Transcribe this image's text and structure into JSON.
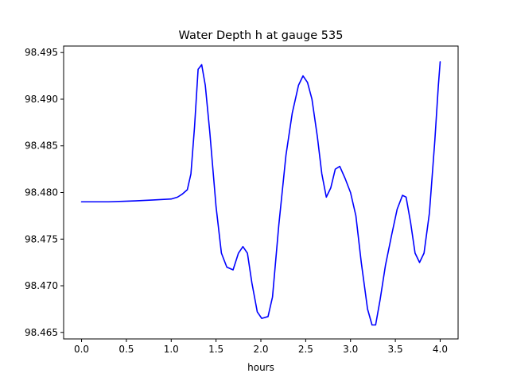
{
  "chart_data": {
    "type": "line",
    "title": "Water Depth h at gauge 535",
    "xlabel": "hours",
    "ylabel": "",
    "xlim": [
      -0.2,
      4.2
    ],
    "ylim": [
      98.4643,
      98.4957
    ],
    "xticks": [
      0.0,
      0.5,
      1.0,
      1.5,
      2.0,
      2.5,
      3.0,
      3.5,
      4.0
    ],
    "xtick_labels": [
      "0.0",
      "0.5",
      "1.0",
      "1.5",
      "2.0",
      "2.5",
      "3.0",
      "3.5",
      "4.0"
    ],
    "yticks": [
      98.465,
      98.47,
      98.475,
      98.48,
      98.485,
      98.49,
      98.495
    ],
    "ytick_labels": [
      "98.465",
      "98.470",
      "98.475",
      "98.480",
      "98.485",
      "98.490",
      "98.495"
    ],
    "grid": false,
    "series": [
      {
        "color": "#0000ff",
        "x": [
          0.0,
          0.3,
          0.6,
          0.8,
          1.0,
          1.07,
          1.12,
          1.18,
          1.22,
          1.26,
          1.3,
          1.34,
          1.38,
          1.43,
          1.5,
          1.56,
          1.62,
          1.69,
          1.75,
          1.8,
          1.85,
          1.9,
          1.96,
          2.01,
          2.08,
          2.13,
          2.2,
          2.28,
          2.35,
          2.42,
          2.47,
          2.52,
          2.57,
          2.63,
          2.68,
          2.73,
          2.78,
          2.83,
          2.88,
          2.94,
          3.0,
          3.06,
          3.12,
          3.19,
          3.24,
          3.28,
          3.33,
          3.39,
          3.46,
          3.52,
          3.58,
          3.62,
          3.67,
          3.72,
          3.77,
          3.82,
          3.88,
          3.94,
          3.98,
          4.0
        ],
        "y": [
          98.479,
          98.479,
          98.4791,
          98.4792,
          98.4793,
          98.4795,
          98.4798,
          98.4803,
          98.482,
          98.487,
          98.4932,
          98.4937,
          98.4915,
          98.4865,
          98.4785,
          98.4735,
          98.472,
          98.4717,
          98.4735,
          98.4742,
          98.4735,
          98.4703,
          98.4672,
          98.4665,
          98.4667,
          98.4688,
          98.4765,
          98.484,
          98.4885,
          98.4915,
          98.4925,
          98.4918,
          98.49,
          98.486,
          98.482,
          98.4795,
          98.4805,
          98.4825,
          98.4828,
          98.4815,
          98.48,
          98.4775,
          98.4725,
          98.4675,
          98.4658,
          98.4658,
          98.4685,
          98.4722,
          98.4755,
          98.4782,
          98.4797,
          98.4795,
          98.4768,
          98.4735,
          98.4725,
          98.4735,
          98.4778,
          98.4855,
          98.4915,
          98.494
        ]
      }
    ]
  }
}
